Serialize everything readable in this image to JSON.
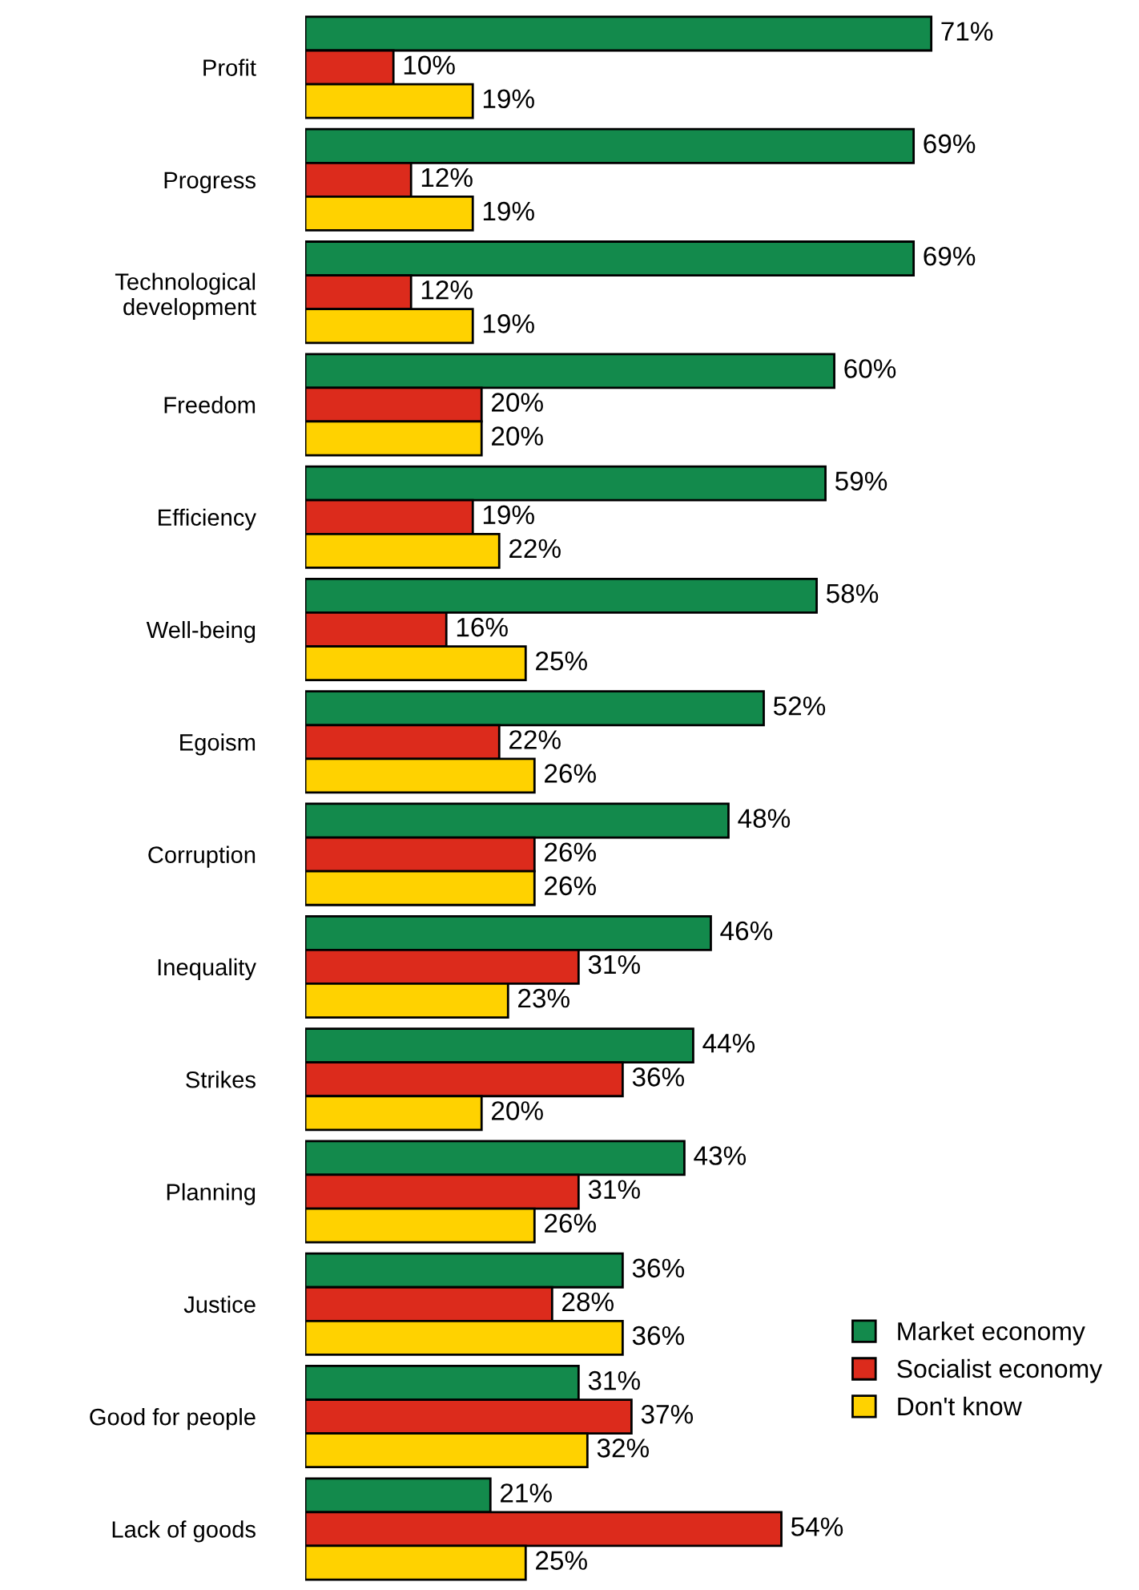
{
  "chart_data": {
    "type": "bar",
    "orientation": "horizontal",
    "legend": "bottom right",
    "grid": false,
    "categories": [
      "Profit",
      "Progress",
      "Technological\ndevelopment",
      "Freedom",
      "Efficiency",
      "Well-being",
      "Egoism",
      "Corruption",
      "Inequality",
      "Strikes",
      "Planning",
      "Justice",
      "Good for people",
      "Lack of goods"
    ],
    "series": [
      {
        "name": "Market economy",
        "color": "#138a4c",
        "values": [
          71,
          69,
          69,
          60,
          59,
          58,
          52,
          48,
          46,
          44,
          43,
          36,
          31,
          21
        ],
        "value_labels": [
          "71%",
          "69%",
          "69%",
          "60%",
          "59%",
          "58%",
          "52%",
          "48%",
          "46%",
          "44%",
          "43%",
          "36%",
          "31%",
          "21%"
        ]
      },
      {
        "name": "Socialist economy",
        "color": "#dc2b1c",
        "values": [
          10,
          12,
          12,
          20,
          19,
          16,
          22,
          26,
          31,
          36,
          31,
          28,
          37,
          54
        ],
        "value_labels": [
          "10%",
          "12%",
          "12%",
          "20%",
          "19%",
          "16%",
          "22%",
          "26%",
          "31%",
          "36%",
          "31%",
          "28%",
          "37%",
          "54%"
        ]
      },
      {
        "name": "Don't know",
        "color": "#ffd200",
        "values": [
          19,
          19,
          19,
          20,
          22,
          25,
          26,
          26,
          23,
          20,
          26,
          36,
          32,
          25
        ],
        "value_labels": [
          "19%",
          "19%",
          "19%",
          "20%",
          "22%",
          "25%",
          "26%",
          "26%",
          "23%",
          "20%",
          "26%",
          "36%",
          "32%",
          "25%"
        ]
      }
    ]
  }
}
